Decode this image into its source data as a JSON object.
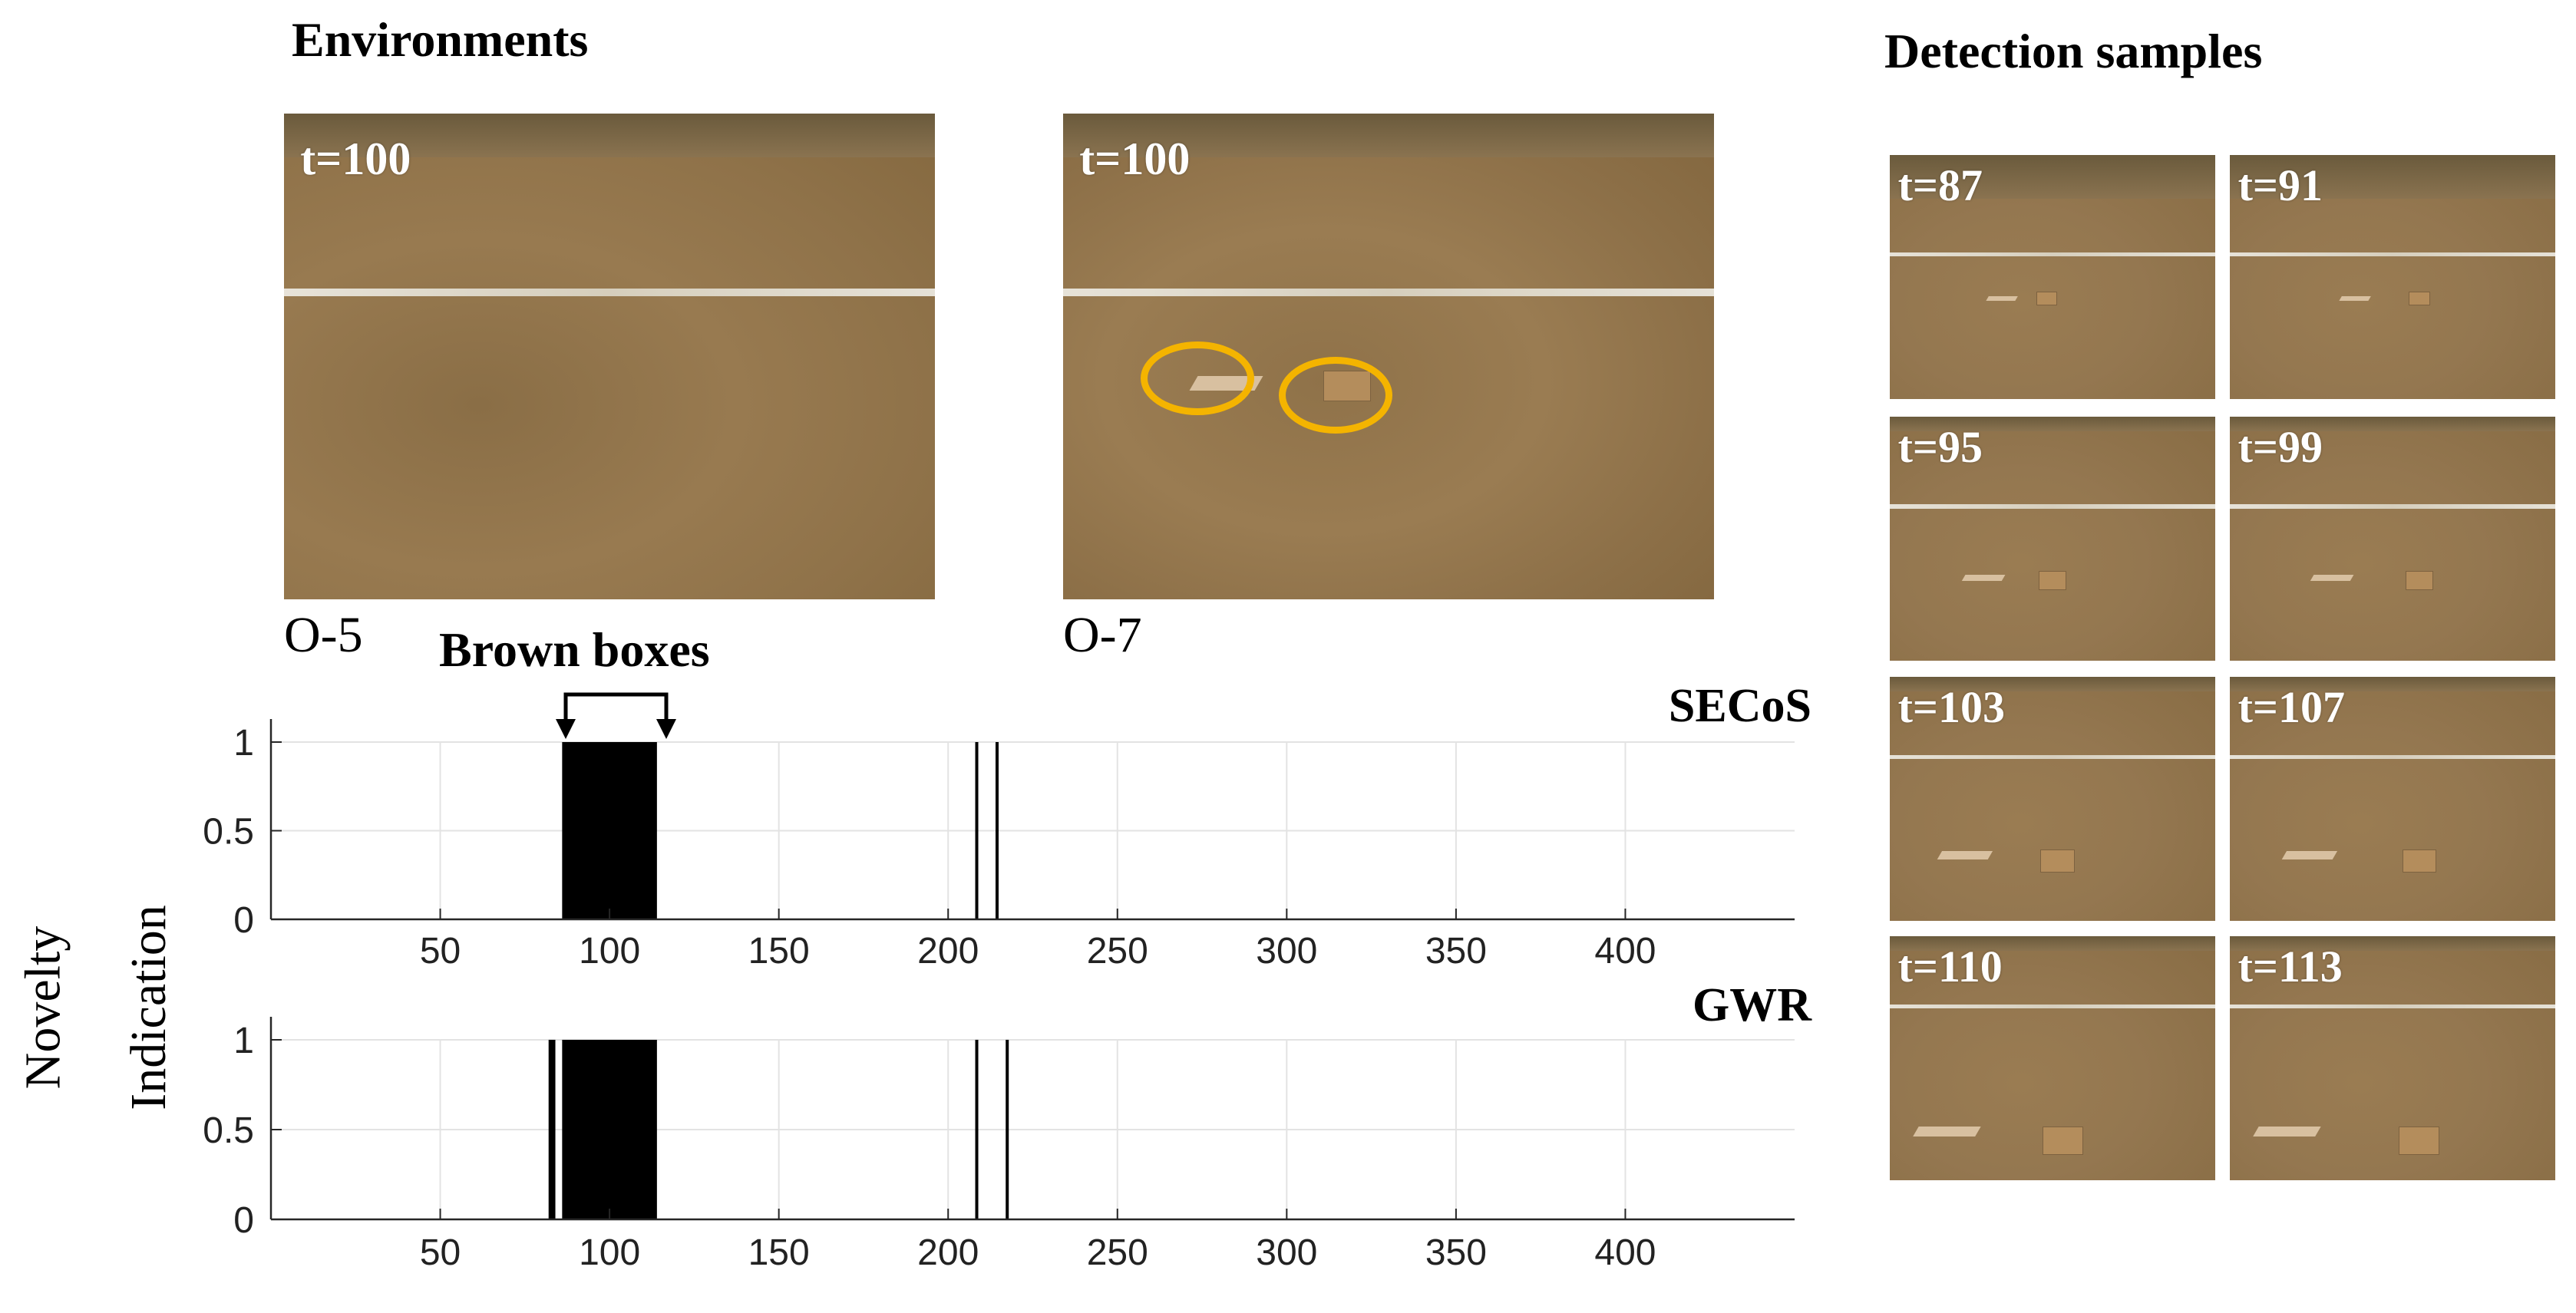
{
  "headings": {
    "environments": "Environments",
    "detection_samples": "Detection samples"
  },
  "environments": [
    {
      "time_label": "t=100",
      "caption": "O-5"
    },
    {
      "time_label": "t=100",
      "caption": "O-7"
    }
  ],
  "annotation": {
    "brown_boxes": "Brown boxes"
  },
  "ylabel_lines": [
    "Novelty",
    "Indication"
  ],
  "detection_samples": [
    {
      "time_label": "t=87"
    },
    {
      "time_label": "t=91"
    },
    {
      "time_label": "t=95"
    },
    {
      "time_label": "t=99"
    },
    {
      "time_label": "t=103"
    },
    {
      "time_label": "t=107"
    },
    {
      "time_label": "t=110"
    },
    {
      "time_label": "t=113"
    }
  ],
  "colors": {
    "highlight_ring": "#f4b400",
    "bars": "#000000",
    "grid": "#e3e3e3",
    "axis": "#262626"
  },
  "chart_data": [
    {
      "type": "bar",
      "title": "SECoS",
      "xlim": [
        0,
        450
      ],
      "ylim": [
        0,
        1
      ],
      "xticks": [
        50,
        100,
        150,
        200,
        250,
        300,
        350,
        400
      ],
      "yticks": [
        0,
        0.5,
        1
      ],
      "ytick_labels": [
        "0",
        "0.5",
        "1"
      ],
      "grid": true,
      "segments": [
        {
          "start": 86,
          "end": 113,
          "value": 1
        },
        {
          "start": 208,
          "end": 208,
          "value": 1
        },
        {
          "start": 214,
          "end": 214,
          "value": 1
        }
      ]
    },
    {
      "type": "bar",
      "title": "GWR",
      "xlim": [
        0,
        450
      ],
      "ylim": [
        0,
        1
      ],
      "xticks": [
        50,
        100,
        150,
        200,
        250,
        300,
        350,
        400
      ],
      "yticks": [
        0,
        0.5,
        1
      ],
      "ytick_labels": [
        "0",
        "0.5",
        "1"
      ],
      "grid": true,
      "segments": [
        {
          "start": 82,
          "end": 83,
          "value": 1
        },
        {
          "start": 86,
          "end": 113,
          "value": 1
        },
        {
          "start": 208,
          "end": 208,
          "value": 1
        },
        {
          "start": 217,
          "end": 217,
          "value": 1
        }
      ]
    }
  ]
}
